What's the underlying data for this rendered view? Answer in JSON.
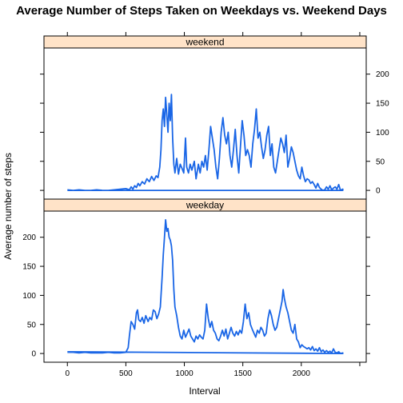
{
  "chart_data": {
    "type": "line",
    "title": "Average Number of Steps Taken on Weekdays vs. Weekend Days",
    "xlabel": "Interval",
    "ylabel": "Average number of steps",
    "xlim": [
      -200,
      2555
    ],
    "ylim": [
      -15,
      245
    ],
    "x_ticks": [
      0,
      500,
      1000,
      1500,
      2000
    ],
    "y_ticks": [
      0,
      50,
      100,
      150,
      200
    ],
    "line_color": "#1A66E6",
    "strip_color": "#FFE3C8",
    "panels": [
      {
        "name": "weekend",
        "points": [
          [
            0,
            1
          ],
          [
            50,
            0
          ],
          [
            100,
            1
          ],
          [
            150,
            0
          ],
          [
            200,
            0
          ],
          [
            250,
            1
          ],
          [
            300,
            0
          ],
          [
            350,
            0
          ],
          [
            400,
            1
          ],
          [
            450,
            2
          ],
          [
            500,
            3
          ],
          [
            530,
            1
          ],
          [
            545,
            6
          ],
          [
            560,
            2
          ],
          [
            575,
            8
          ],
          [
            590,
            5
          ],
          [
            605,
            12
          ],
          [
            620,
            8
          ],
          [
            640,
            15
          ],
          [
            660,
            11
          ],
          [
            680,
            20
          ],
          [
            700,
            15
          ],
          [
            720,
            24
          ],
          [
            740,
            17
          ],
          [
            760,
            25
          ],
          [
            775,
            22
          ],
          [
            790,
            40
          ],
          [
            800,
            70
          ],
          [
            810,
            120
          ],
          [
            820,
            140
          ],
          [
            830,
            110
          ],
          [
            840,
            160
          ],
          [
            850,
            130
          ],
          [
            860,
            100
          ],
          [
            870,
            150
          ],
          [
            880,
            120
          ],
          [
            890,
            165
          ],
          [
            900,
            90
          ],
          [
            910,
            45
          ],
          [
            920,
            30
          ],
          [
            935,
            55
          ],
          [
            950,
            28
          ],
          [
            965,
            45
          ],
          [
            980,
            38
          ],
          [
            995,
            30
          ],
          [
            1010,
            90
          ],
          [
            1020,
            40
          ],
          [
            1035,
            30
          ],
          [
            1050,
            45
          ],
          [
            1065,
            35
          ],
          [
            1085,
            50
          ],
          [
            1100,
            20
          ],
          [
            1120,
            45
          ],
          [
            1135,
            30
          ],
          [
            1150,
            50
          ],
          [
            1165,
            40
          ],
          [
            1180,
            60
          ],
          [
            1195,
            35
          ],
          [
            1210,
            70
          ],
          [
            1225,
            110
          ],
          [
            1240,
            90
          ],
          [
            1255,
            70
          ],
          [
            1270,
            40
          ],
          [
            1285,
            20
          ],
          [
            1300,
            55
          ],
          [
            1315,
            100
          ],
          [
            1330,
            125
          ],
          [
            1345,
            95
          ],
          [
            1360,
            80
          ],
          [
            1375,
            100
          ],
          [
            1390,
            60
          ],
          [
            1405,
            40
          ],
          [
            1420,
            70
          ],
          [
            1435,
            105
          ],
          [
            1450,
            60
          ],
          [
            1465,
            30
          ],
          [
            1480,
            75
          ],
          [
            1495,
            120
          ],
          [
            1510,
            95
          ],
          [
            1525,
            60
          ],
          [
            1540,
            70
          ],
          [
            1555,
            60
          ],
          [
            1570,
            40
          ],
          [
            1585,
            80
          ],
          [
            1600,
            105
          ],
          [
            1615,
            140
          ],
          [
            1630,
            90
          ],
          [
            1645,
            100
          ],
          [
            1660,
            75
          ],
          [
            1675,
            55
          ],
          [
            1690,
            70
          ],
          [
            1705,
            95
          ],
          [
            1720,
            110
          ],
          [
            1735,
            60
          ],
          [
            1750,
            80
          ],
          [
            1765,
            40
          ],
          [
            1780,
            30
          ],
          [
            1795,
            50
          ],
          [
            1810,
            70
          ],
          [
            1825,
            90
          ],
          [
            1840,
            80
          ],
          [
            1855,
            65
          ],
          [
            1870,
            95
          ],
          [
            1885,
            40
          ],
          [
            1900,
            55
          ],
          [
            1915,
            75
          ],
          [
            1930,
            65
          ],
          [
            1945,
            50
          ],
          [
            1960,
            35
          ],
          [
            1975,
            25
          ],
          [
            1990,
            20
          ],
          [
            2005,
            40
          ],
          [
            2020,
            25
          ],
          [
            2035,
            15
          ],
          [
            2050,
            20
          ],
          [
            2065,
            18
          ],
          [
            2080,
            12
          ],
          [
            2095,
            15
          ],
          [
            2110,
            10
          ],
          [
            2125,
            4
          ],
          [
            2140,
            12
          ],
          [
            2155,
            5
          ],
          [
            2170,
            2
          ],
          [
            2185,
            0
          ],
          [
            2200,
            1
          ],
          [
            2215,
            6
          ],
          [
            2230,
            2
          ],
          [
            2245,
            8
          ],
          [
            2260,
            1
          ],
          [
            2275,
            4
          ],
          [
            2290,
            6
          ],
          [
            2305,
            2
          ],
          [
            2320,
            10
          ],
          [
            2335,
            0
          ],
          [
            2355,
            2
          ],
          [
            2355,
            0
          ],
          [
            0,
            0
          ]
        ]
      },
      {
        "name": "weekday",
        "points": [
          [
            0,
            2
          ],
          [
            50,
            2
          ],
          [
            100,
            1
          ],
          [
            150,
            2
          ],
          [
            200,
            1
          ],
          [
            250,
            1
          ],
          [
            300,
            1
          ],
          [
            350,
            2
          ],
          [
            400,
            1
          ],
          [
            450,
            1
          ],
          [
            500,
            2
          ],
          [
            520,
            10
          ],
          [
            530,
            30
          ],
          [
            545,
            55
          ],
          [
            560,
            50
          ],
          [
            575,
            42
          ],
          [
            590,
            70
          ],
          [
            600,
            75
          ],
          [
            610,
            58
          ],
          [
            625,
            55
          ],
          [
            640,
            62
          ],
          [
            655,
            52
          ],
          [
            670,
            65
          ],
          [
            690,
            55
          ],
          [
            705,
            62
          ],
          [
            720,
            58
          ],
          [
            735,
            75
          ],
          [
            750,
            72
          ],
          [
            765,
            60
          ],
          [
            780,
            68
          ],
          [
            795,
            80
          ],
          [
            810,
            130
          ],
          [
            820,
            170
          ],
          [
            830,
            200
          ],
          [
            840,
            230
          ],
          [
            850,
            210
          ],
          [
            860,
            215
          ],
          [
            870,
            200
          ],
          [
            880,
            195
          ],
          [
            890,
            185
          ],
          [
            900,
            160
          ],
          [
            910,
            110
          ],
          [
            920,
            80
          ],
          [
            935,
            65
          ],
          [
            950,
            45
          ],
          [
            965,
            30
          ],
          [
            980,
            25
          ],
          [
            995,
            40
          ],
          [
            1010,
            28
          ],
          [
            1025,
            35
          ],
          [
            1040,
            42
          ],
          [
            1055,
            30
          ],
          [
            1070,
            25
          ],
          [
            1085,
            20
          ],
          [
            1100,
            30
          ],
          [
            1115,
            25
          ],
          [
            1130,
            32
          ],
          [
            1145,
            28
          ],
          [
            1160,
            25
          ],
          [
            1175,
            40
          ],
          [
            1190,
            85
          ],
          [
            1205,
            60
          ],
          [
            1220,
            45
          ],
          [
            1235,
            55
          ],
          [
            1250,
            40
          ],
          [
            1265,
            35
          ],
          [
            1280,
            25
          ],
          [
            1295,
            22
          ],
          [
            1310,
            30
          ],
          [
            1325,
            40
          ],
          [
            1340,
            30
          ],
          [
            1355,
            42
          ],
          [
            1370,
            25
          ],
          [
            1385,
            35
          ],
          [
            1400,
            45
          ],
          [
            1415,
            35
          ],
          [
            1430,
            30
          ],
          [
            1445,
            38
          ],
          [
            1460,
            32
          ],
          [
            1475,
            40
          ],
          [
            1490,
            35
          ],
          [
            1505,
            55
          ],
          [
            1520,
            85
          ],
          [
            1535,
            60
          ],
          [
            1550,
            70
          ],
          [
            1565,
            50
          ],
          [
            1580,
            42
          ],
          [
            1595,
            35
          ],
          [
            1610,
            28
          ],
          [
            1625,
            40
          ],
          [
            1640,
            35
          ],
          [
            1655,
            45
          ],
          [
            1670,
            40
          ],
          [
            1685,
            30
          ],
          [
            1700,
            35
          ],
          [
            1715,
            60
          ],
          [
            1730,
            75
          ],
          [
            1745,
            65
          ],
          [
            1760,
            50
          ],
          [
            1775,
            40
          ],
          [
            1790,
            45
          ],
          [
            1805,
            60
          ],
          [
            1820,
            75
          ],
          [
            1835,
            90
          ],
          [
            1845,
            110
          ],
          [
            1855,
            95
          ],
          [
            1870,
            80
          ],
          [
            1885,
            70
          ],
          [
            1900,
            55
          ],
          [
            1915,
            40
          ],
          [
            1930,
            35
          ],
          [
            1945,
            50
          ],
          [
            1960,
            25
          ],
          [
            1975,
            20
          ],
          [
            1990,
            10
          ],
          [
            2005,
            15
          ],
          [
            2020,
            12
          ],
          [
            2035,
            10
          ],
          [
            2050,
            8
          ],
          [
            2065,
            10
          ],
          [
            2080,
            6
          ],
          [
            2095,
            12
          ],
          [
            2110,
            5
          ],
          [
            2125,
            8
          ],
          [
            2140,
            4
          ],
          [
            2155,
            10
          ],
          [
            2170,
            3
          ],
          [
            2185,
            6
          ],
          [
            2200,
            2
          ],
          [
            2215,
            5
          ],
          [
            2230,
            2
          ],
          [
            2245,
            4
          ],
          [
            2260,
            1
          ],
          [
            2275,
            8
          ],
          [
            2290,
            2
          ],
          [
            2305,
            1
          ],
          [
            2320,
            3
          ],
          [
            2335,
            0
          ],
          [
            2355,
            1
          ],
          [
            2355,
            0
          ],
          [
            0,
            3
          ]
        ]
      }
    ]
  }
}
